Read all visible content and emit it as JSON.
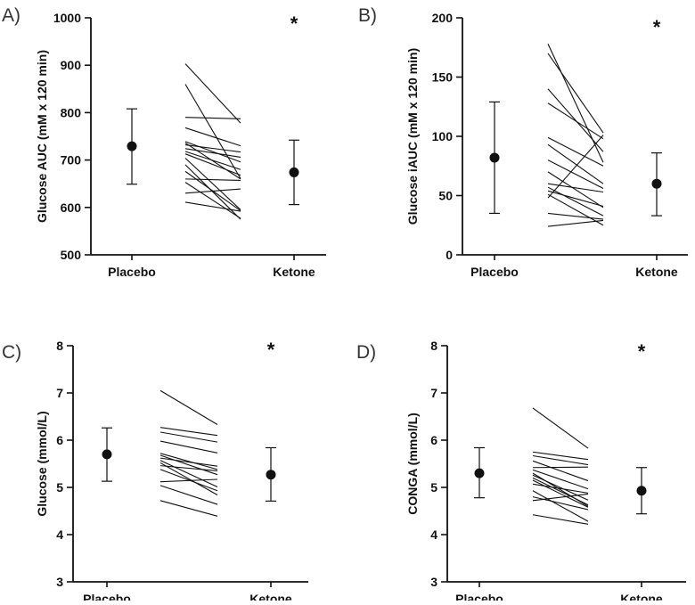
{
  "chart_data": [
    {
      "type": "scatter",
      "panel_label": "A)",
      "ylabel": "Glucose AUC (mM x 120 min)",
      "ylim": [
        500,
        1000
      ],
      "yticks": [
        500,
        600,
        700,
        800,
        900,
        1000
      ],
      "categories": [
        "Placebo",
        "Ketone"
      ],
      "summary": [
        {
          "category": "Placebo",
          "mean": 729,
          "upper": 808,
          "lower": 649
        },
        {
          "category": "Ketone",
          "mean": 674,
          "upper": 742,
          "lower": 606
        }
      ],
      "paired": [
        [
          903,
          778
        ],
        [
          860,
          661
        ],
        [
          790,
          787
        ],
        [
          768,
          730
        ],
        [
          739,
          696
        ],
        [
          736,
          660
        ],
        [
          732,
          717
        ],
        [
          724,
          706
        ],
        [
          718,
          680
        ],
        [
          713,
          668
        ],
        [
          704,
          595
        ],
        [
          690,
          575
        ],
        [
          676,
          593
        ],
        [
          660,
          657
        ],
        [
          653,
          577
        ],
        [
          630,
          639
        ],
        [
          611,
          592
        ]
      ],
      "significance": "*"
    },
    {
      "type": "scatter",
      "panel_label": "B)",
      "ylabel": "Glucose iAUC (mM x 120 min)",
      "ylim": [
        0,
        200
      ],
      "yticks": [
        0,
        50,
        100,
        150,
        200
      ],
      "categories": [
        "Placebo",
        "Ketone"
      ],
      "summary": [
        {
          "category": "Placebo",
          "mean": 82,
          "upper": 129,
          "lower": 35
        },
        {
          "category": "Ketone",
          "mean": 60,
          "upper": 86,
          "lower": 33
        }
      ],
      "paired": [
        [
          178,
          78
        ],
        [
          170,
          103
        ],
        [
          140,
          87
        ],
        [
          128,
          98
        ],
        [
          99,
          75
        ],
        [
          93,
          60
        ],
        [
          80,
          56
        ],
        [
          70,
          40
        ],
        [
          60,
          53
        ],
        [
          57,
          33
        ],
        [
          54,
          41
        ],
        [
          51,
          25
        ],
        [
          48,
          101
        ],
        [
          35,
          30
        ],
        [
          24,
          29
        ]
      ],
      "significance": "*"
    },
    {
      "type": "scatter",
      "panel_label": "C)",
      "ylabel": "Glucose (mmol/L)",
      "ylim": [
        3,
        8
      ],
      "yticks": [
        3,
        4,
        5,
        6,
        7,
        8
      ],
      "categories": [
        "Placebo",
        "Ketone"
      ],
      "summary": [
        {
          "category": "Placebo",
          "mean": 5.7,
          "upper": 6.26,
          "lower": 5.13
        },
        {
          "category": "Ketone",
          "mean": 5.27,
          "upper": 5.84,
          "lower": 4.71
        }
      ],
      "paired": [
        [
          7.05,
          6.33
        ],
        [
          6.27,
          6.1
        ],
        [
          6.17,
          5.96
        ],
        [
          5.98,
          5.73
        ],
        [
          5.72,
          5.38
        ],
        [
          5.68,
          5.27
        ],
        [
          5.62,
          5.45
        ],
        [
          5.57,
          5.01
        ],
        [
          5.52,
          4.84
        ],
        [
          5.46,
          5.35
        ],
        [
          5.38,
          4.93
        ],
        [
          5.12,
          5.17
        ],
        [
          5.04,
          4.64
        ],
        [
          4.72,
          4.39
        ]
      ],
      "significance": "*"
    },
    {
      "type": "scatter",
      "panel_label": "D)",
      "ylabel": "CONGA (mmol/L)",
      "ylim": [
        3,
        8
      ],
      "yticks": [
        3,
        4,
        5,
        6,
        7,
        8
      ],
      "categories": [
        "Placebo",
        "Ketone"
      ],
      "summary": [
        {
          "category": "Placebo",
          "mean": 5.3,
          "upper": 5.84,
          "lower": 4.78
        },
        {
          "category": "Ketone",
          "mean": 4.93,
          "upper": 5.42,
          "lower": 4.44
        }
      ],
      "paired": [
        [
          6.68,
          5.83
        ],
        [
          5.75,
          5.59
        ],
        [
          5.67,
          5.48
        ],
        [
          5.56,
          5.14
        ],
        [
          5.42,
          5.43
        ],
        [
          5.37,
          4.97
        ],
        [
          5.3,
          4.6
        ],
        [
          5.26,
          4.73
        ],
        [
          5.2,
          4.63
        ],
        [
          5.15,
          4.58
        ],
        [
          5.07,
          4.88
        ],
        [
          4.93,
          4.28
        ],
        [
          4.8,
          4.53
        ],
        [
          4.72,
          4.86
        ],
        [
          4.42,
          4.22
        ]
      ],
      "significance": "*"
    }
  ]
}
